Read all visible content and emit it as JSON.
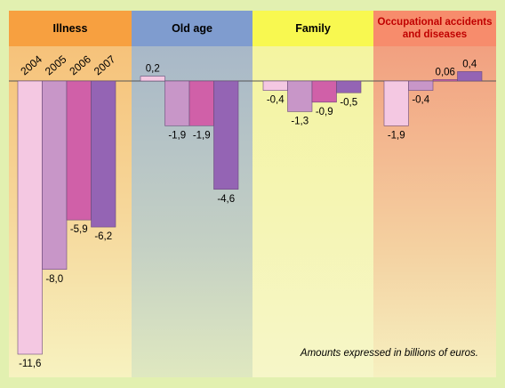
{
  "chart_data": {
    "type": "bar",
    "categories": [
      "Illness",
      "Old age",
      "Family",
      "Occupational accidents and diseases"
    ],
    "series": [
      {
        "name": "2004",
        "color": "#f4c8e2",
        "values": [
          -11.6,
          0.2,
          -0.4,
          -1.9
        ],
        "value_labels": [
          "-11,6",
          "0,2",
          "-0,4",
          "-1,9"
        ]
      },
      {
        "name": "2005",
        "color": "#c896c8",
        "values": [
          -8.0,
          -1.9,
          -1.3,
          -0.4
        ],
        "value_labels": [
          "-8,0",
          "-1,9",
          "-1,3",
          "-0,4"
        ]
      },
      {
        "name": "2006",
        "color": "#d060a8",
        "values": [
          -5.9,
          -1.9,
          -0.9,
          0.06
        ],
        "value_labels": [
          "-5,9",
          "-1,9",
          "-0,9",
          "0,06"
        ]
      },
      {
        "name": "2007",
        "color": "#9464b4",
        "values": [
          -6.2,
          -4.6,
          -0.5,
          0.4
        ],
        "value_labels": [
          "-6,2",
          "-4,6",
          "-0,5",
          "0,4"
        ]
      }
    ],
    "note": "Amounts expressed in billions of euros."
  }
}
